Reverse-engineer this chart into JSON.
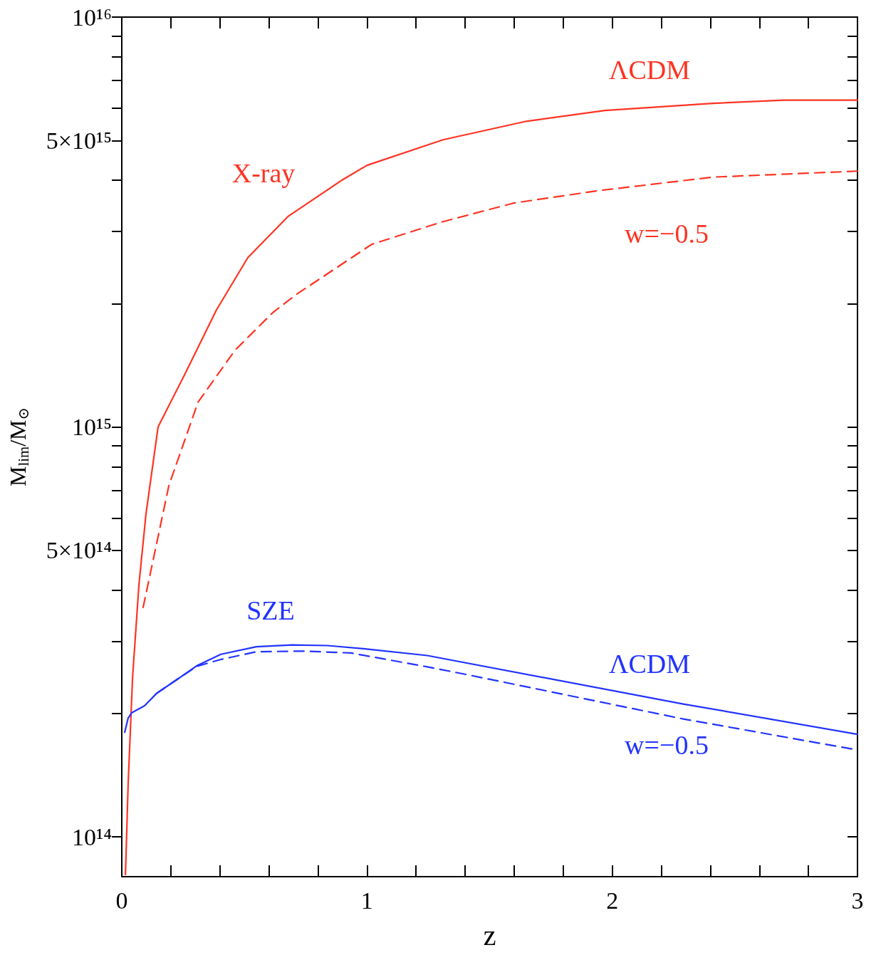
{
  "chart_data": {
    "type": "line",
    "xlabel": "z",
    "ylabel": "M$_{lim}$/M$_{⊙}$",
    "log": "y",
    "grid": false,
    "marker": "none",
    "xlim": [
      0,
      3
    ],
    "ylim": [
      80000000000000.0,
      1e+16
    ],
    "xticks": [
      0,
      {
        "value": 0.2,
        "label": null
      },
      {
        "value": 0.4,
        "label": null
      },
      {
        "value": 0.6,
        "label": null
      },
      {
        "value": 0.8,
        "label": null
      },
      1,
      {
        "value": 1.2,
        "label": null
      },
      {
        "value": 1.4,
        "label": null
      },
      {
        "value": 1.6,
        "label": null
      },
      {
        "value": 1.8,
        "label": null
      },
      2,
      {
        "value": 2.2,
        "label": null
      },
      {
        "value": 2.4,
        "label": null
      },
      {
        "value": 2.6,
        "label": null
      },
      {
        "value": 2.8,
        "label": null
      },
      3
    ],
    "yticks": [
      {
        "value": 100000000000000.0,
        "label": "10¹⁴"
      },
      {
        "value": 200000000000000.0,
        "label": null
      },
      {
        "value": 300000000000000.0,
        "label": null
      },
      {
        "value": 400000000000000.0,
        "label": null
      },
      {
        "value": 500000000000000.0,
        "label": "5×10¹⁴"
      },
      {
        "value": 600000000000000.0,
        "label": null
      },
      {
        "value": 700000000000000.0,
        "label": null
      },
      {
        "value": 800000000000000.0,
        "label": null
      },
      {
        "value": 900000000000000.0,
        "label": null
      },
      {
        "value": 1000000000000000.0,
        "label": "10¹⁵"
      },
      {
        "value": 2000000000000000.0,
        "label": null
      },
      {
        "value": 3000000000000000.0,
        "label": null
      },
      {
        "value": 4000000000000000.0,
        "label": null
      },
      {
        "value": 5000000000000000.0,
        "label": "5×10¹⁵"
      },
      {
        "value": 6000000000000000.0,
        "label": null
      },
      {
        "value": 7000000000000000.0,
        "label": null
      },
      {
        "value": 8000000000000000.0,
        "label": null
      },
      {
        "value": 9000000000000000.0,
        "label": null
      },
      {
        "value": 1e+16,
        "label": "10¹⁶"
      }
    ],
    "series": [
      {
        "color": "#ff3322",
        "line_style": "solid",
        "x": [
          0.015,
          0.026,
          0.044,
          0.07,
          0.099,
          0.148,
          0.261,
          0.386,
          0.514,
          0.677,
          0.9,
          1.0,
          1.31,
          1.65,
          1.97,
          2.41,
          2.7,
          3.0
        ],
        "values": [
          81000000000000.0,
          135000000000000.0,
          245000000000000.0,
          413000000000000.0,
          616000000000000.0,
          1000000000000000.0,
          1360000000000000.0,
          1930000000000000.0,
          2590000000000000.0,
          3260000000000000.0,
          4010000000000000.0,
          4350000000000000.0,
          5020000000000000.0,
          5570000000000000.0,
          5920000000000000.0,
          6160000000000000.0,
          6270000000000000.0,
          6270000000000000.0
        ]
      },
      {
        "color": "#ff3322",
        "line_style": "dashed",
        "x": [
          0.087,
          0.192,
          0.311,
          0.462,
          0.615,
          0.714,
          1.019,
          1.31,
          1.6,
          1.94,
          2.41,
          3.0
        ],
        "values": [
          363000000000000.0,
          720000000000000.0,
          1150000000000000.0,
          1540000000000000.0,
          1900000000000000.0,
          2110000000000000.0,
          2790000000000000.0,
          3170000000000000.0,
          3520000000000000.0,
          3770000000000000.0,
          4070000000000000.0,
          4210000000000000.0
        ]
      },
      {
        "color": "#2233ff",
        "line_style": "solid",
        "x": [
          0.012,
          0.026,
          0.041,
          0.093,
          0.142,
          0.229,
          0.308,
          0.404,
          0.549,
          0.694,
          0.839,
          0.985,
          1.246,
          2.29,
          3.0
        ],
        "values": [
          180000000000000.0,
          195000000000000.0,
          201000000000000.0,
          209000000000000.0,
          224000000000000.0,
          243000000000000.0,
          262000000000000.0,
          279000000000000.0,
          291000000000000.0,
          294000000000000.0,
          293000000000000.0,
          288000000000000.0,
          277000000000000.0,
          211000000000000.0,
          178000000000000.0
        ]
      },
      {
        "color": "#2233ff",
        "line_style": "dashed",
        "x": [
          0.142,
          0.229,
          0.308,
          0.404,
          0.549,
          0.743,
          0.935,
          1.246,
          1.42,
          2.29,
          3.0
        ],
        "values": [
          224000000000000.0,
          243000000000000.0,
          261000000000000.0,
          271000000000000.0,
          283000000000000.0,
          284000000000000.0,
          281000000000000.0,
          260000000000000.0,
          248000000000000.0,
          194000000000000.0,
          163000000000000.0
        ]
      }
    ],
    "annotations": [
      "X-ray",
      "ΛCDM",
      "w=−0.5",
      "SZE",
      "ΛCDM",
      "w=−0.5"
    ]
  }
}
